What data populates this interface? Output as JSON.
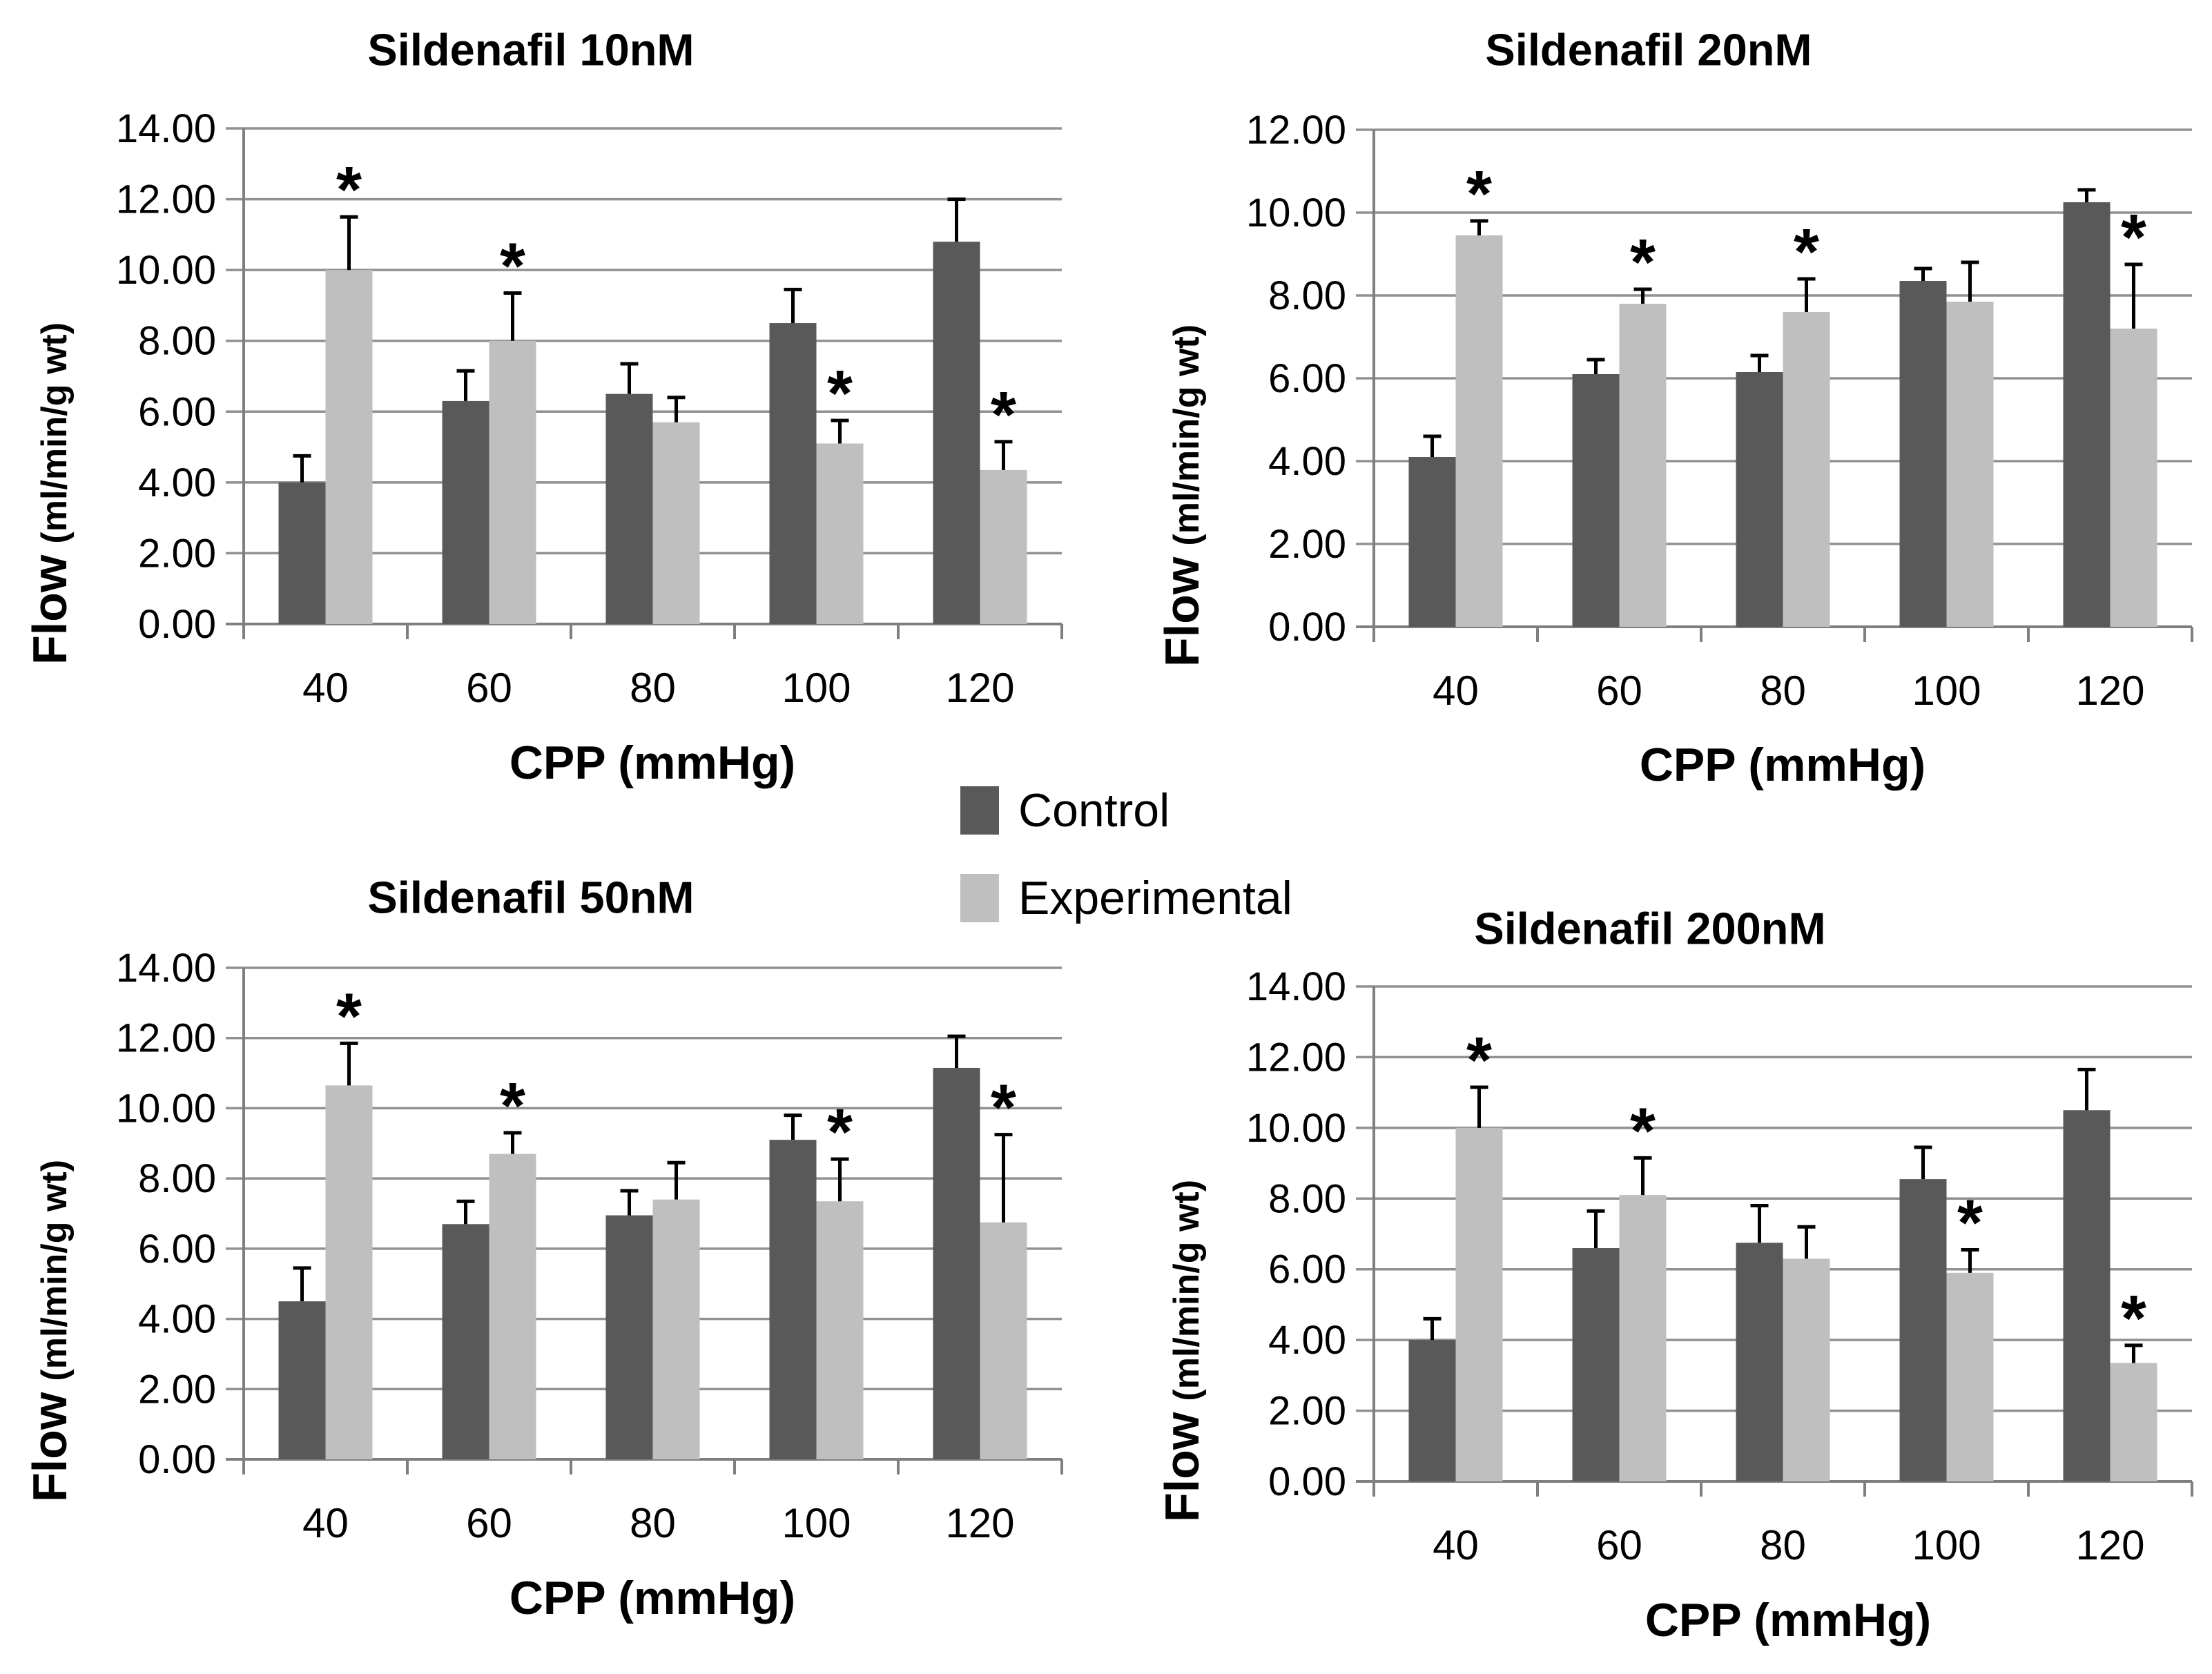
{
  "page": {
    "background": "#ffffff"
  },
  "labels": {
    "y_axis_word": "Flow",
    "y_axis_units": "(ml/min/g wt)",
    "x_axis_title": "CPP (mmHg)"
  },
  "legend": {
    "position": "middle-center",
    "items": [
      {
        "label": "Control",
        "color": "#595959"
      },
      {
        "label": "Experimental",
        "color": "#bfbfbf"
      }
    ]
  },
  "styles": {
    "control_color": "#595959",
    "experimental_color": "#bfbfbf",
    "gridline_color": "#919191",
    "axis_color": "#7f7f7f",
    "error_bar_color": "#000000",
    "text_color": "#000000",
    "significance_marker": "*"
  },
  "chart_data": [
    {
      "type": "bar",
      "title": "Sildenafil 10nM",
      "xlabel": "CPP (mmHg)",
      "ylabel": "Flow (ml/min/g wt)",
      "categories": [
        "40",
        "60",
        "80",
        "100",
        "120"
      ],
      "ylim": [
        0,
        14
      ],
      "ytick_step": 2,
      "ytick_decimals": 2,
      "grid": true,
      "series": [
        {
          "name": "Control",
          "values": [
            4.0,
            6.3,
            6.5,
            8.5,
            10.8
          ],
          "errors_plus": [
            0.75,
            0.85,
            0.85,
            0.95,
            1.2
          ]
        },
        {
          "name": "Experimental",
          "values": [
            10.0,
            8.0,
            5.7,
            5.1,
            4.35
          ],
          "errors_plus": [
            1.5,
            1.35,
            0.7,
            0.65,
            0.8
          ]
        }
      ],
      "significant_experimental": [
        true,
        true,
        false,
        true,
        true
      ]
    },
    {
      "type": "bar",
      "title": "Sildenafil 20nM",
      "xlabel": "CPP (mmHg)",
      "ylabel": "Flow (ml/min/g wt)",
      "categories": [
        "40",
        "60",
        "80",
        "100",
        "120"
      ],
      "ylim": [
        0,
        12
      ],
      "ytick_step": 2,
      "ytick_decimals": 2,
      "grid": true,
      "series": [
        {
          "name": "Control",
          "values": [
            4.1,
            6.1,
            6.15,
            8.35,
            10.25
          ],
          "errors_plus": [
            0.5,
            0.35,
            0.4,
            0.3,
            0.3
          ]
        },
        {
          "name": "Experimental",
          "values": [
            9.45,
            7.8,
            7.6,
            7.85,
            7.2
          ],
          "errors_plus": [
            0.35,
            0.35,
            0.8,
            0.95,
            1.55
          ]
        }
      ],
      "significant_experimental": [
        true,
        true,
        true,
        false,
        true
      ]
    },
    {
      "type": "bar",
      "title": "Sildenafil 50nM",
      "xlabel": "CPP (mmHg)",
      "ylabel": "Flow (ml/min/g wt)",
      "categories": [
        "40",
        "60",
        "80",
        "100",
        "120"
      ],
      "ylim": [
        0,
        14
      ],
      "ytick_step": 2,
      "ytick_decimals": 2,
      "grid": true,
      "series": [
        {
          "name": "Control",
          "values": [
            4.5,
            6.7,
            6.95,
            9.1,
            11.15
          ],
          "errors_plus": [
            0.95,
            0.65,
            0.7,
            0.7,
            0.9
          ]
        },
        {
          "name": "Experimental",
          "values": [
            10.65,
            8.7,
            7.4,
            7.35,
            6.75
          ],
          "errors_plus": [
            1.2,
            0.6,
            1.05,
            1.2,
            2.5
          ]
        }
      ],
      "significant_experimental": [
        true,
        true,
        false,
        true,
        true
      ]
    },
    {
      "type": "bar",
      "title": "Sildenafil 200nM",
      "xlabel": "CPP (mmHg)",
      "ylabel": "Flow (ml/min/g wt)",
      "categories": [
        "40",
        "60",
        "80",
        "100",
        "120"
      ],
      "ylim": [
        0,
        14
      ],
      "ytick_step": 2,
      "ytick_decimals": 2,
      "grid": true,
      "series": [
        {
          "name": "Control",
          "values": [
            4.0,
            6.6,
            6.75,
            8.55,
            10.5
          ],
          "errors_plus": [
            0.6,
            1.05,
            1.05,
            0.9,
            1.15
          ]
        },
        {
          "name": "Experimental",
          "values": [
            10.0,
            8.1,
            6.3,
            5.9,
            3.35
          ],
          "errors_plus": [
            1.15,
            1.05,
            0.9,
            0.65,
            0.5
          ]
        }
      ],
      "significant_experimental": [
        true,
        true,
        false,
        true,
        true
      ]
    }
  ]
}
